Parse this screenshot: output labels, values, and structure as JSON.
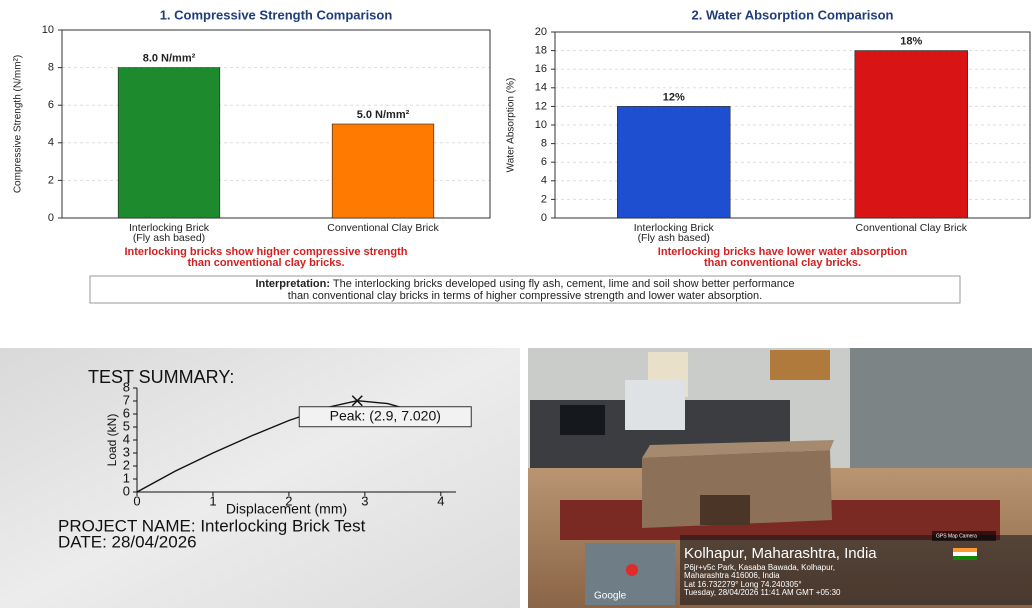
{
  "chart_data": [
    {
      "type": "bar",
      "title": "1. Compressive Strength Comparison",
      "categories": [
        "Interlocking Brick\n(Fly ash based)",
        "Conventional Clay Brick"
      ],
      "values": [
        8.0,
        5.0
      ],
      "value_labels": [
        "8.0 N/mm²",
        "5.0 N/mm²"
      ],
      "colors": [
        "#1e8a2e",
        "#ff7a00"
      ],
      "ylabel": "Compressive Strength (N/mm²)",
      "ylim": [
        0,
        10
      ],
      "yticks": [
        0,
        2,
        4,
        6,
        8,
        10
      ],
      "grid": true,
      "note": "Interlocking bricks show higher compressive strength\nthan conventional clay bricks."
    },
    {
      "type": "bar",
      "title": "2. Water Absorption Comparison",
      "categories": [
        "Interlocking Brick\n(Fly ash based)",
        "Conventional Clay Brick"
      ],
      "values": [
        12,
        18
      ],
      "value_labels": [
        "12%",
        "18%"
      ],
      "colors": [
        "#1f4fd1",
        "#d81414"
      ],
      "ylabel": "Water Absorption (%)",
      "ylim": [
        0,
        20
      ],
      "yticks": [
        0,
        2,
        4,
        6,
        8,
        10,
        12,
        14,
        16,
        18,
        20
      ],
      "grid": true,
      "note": "Interlocking bricks have lower water absorption\nthan conventional clay bricks."
    },
    {
      "type": "line",
      "title": "TEST SUMMARY:",
      "x": [
        0,
        0.5,
        1,
        1.5,
        2,
        2.5,
        2.9,
        3.3,
        3.6
      ],
      "values": [
        0,
        1.6,
        3.0,
        4.3,
        5.5,
        6.5,
        7.02,
        6.8,
        6.3
      ],
      "color": "#111111",
      "xlabel": "Displacement (mm)",
      "ylabel": "Load (kN)",
      "xlim": [
        0,
        4.2
      ],
      "xticks": [
        0,
        1,
        2,
        3,
        4
      ],
      "ylim": [
        0,
        8
      ],
      "yticks": [
        0,
        1,
        2,
        3,
        4,
        5,
        6,
        7,
        8
      ],
      "annotation": "Peak: (2.9, 7.020)",
      "project": "PROJECT NAME: Interlocking Brick Test",
      "date": "DATE: 28/04/2026"
    }
  ],
  "interpretation": {
    "label": "Interpretation:",
    "lines": [
      " The interlocking bricks developed using fly ash, cement, lime and soil show better performance",
      "than conventional clay bricks in terms of higher compressive strength and lower water absorption."
    ]
  },
  "photo": {
    "location": "Kolhapur, Maharashtra, India",
    "address": "P6jr+v5c Park, Kasaba Bawada, Kolhapur,\nMaharashtra 416006, India",
    "coords": "Lat 16.732279° Long 74.240305°",
    "timestamp": "Tuesday, 28/04/2026 11:41 AM GMT +05:30",
    "map_label": "Google",
    "badge": "GPS Map Camera"
  }
}
